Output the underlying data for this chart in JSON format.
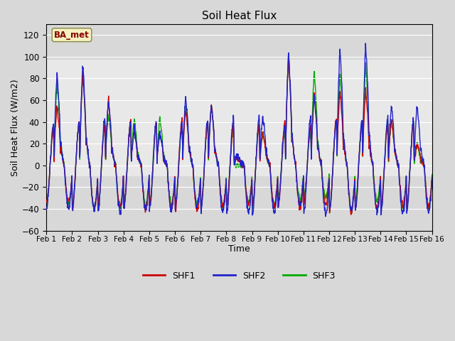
{
  "title": "Soil Heat Flux",
  "xlabel": "Time",
  "ylabel": "Soil Heat Flux (W/m2)",
  "ylim": [
    -60,
    130
  ],
  "yticks": [
    -60,
    -40,
    -20,
    0,
    20,
    40,
    60,
    80,
    100,
    120
  ],
  "fig_bg_color": "#d8d8d8",
  "plot_bg_color": "#d8d8d8",
  "inner_band_color": "#e8e8e8",
  "shf1_color": "#cc0000",
  "shf2_color": "#2222cc",
  "shf3_color": "#00aa00",
  "line_width": 1.0,
  "legend_labels": [
    "SHF1",
    "SHF2",
    "SHF3"
  ],
  "station_label": "BA_met",
  "num_days": 15,
  "points_per_day": 144,
  "day_peak_heights_shf1": [
    55,
    85,
    60,
    32,
    30,
    52,
    56,
    8,
    30,
    100,
    68,
    70,
    70,
    42,
    20
  ],
  "day_peak_heights_shf2": [
    85,
    93,
    59,
    32,
    30,
    62,
    55,
    9,
    47,
    104,
    65,
    110,
    112,
    55,
    55
  ],
  "day_peak_heights_shf3": [
    77,
    84,
    48,
    43,
    43,
    56,
    55,
    0,
    30,
    100,
    87,
    83,
    93,
    42,
    20
  ],
  "night_trough": -38
}
